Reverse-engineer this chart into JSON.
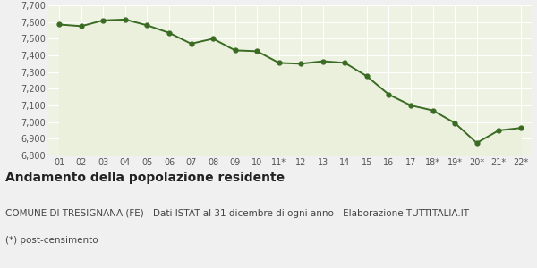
{
  "x_labels": [
    "01",
    "02",
    "03",
    "04",
    "05",
    "06",
    "07",
    "08",
    "09",
    "10",
    "11*",
    "12",
    "13",
    "14",
    "15",
    "16",
    "17",
    "18*",
    "19*",
    "20*",
    "21*",
    "22*"
  ],
  "y_values": [
    7585,
    7575,
    7610,
    7615,
    7580,
    7535,
    7470,
    7500,
    7430,
    7425,
    7355,
    7350,
    7365,
    7355,
    7275,
    7165,
    7100,
    7070,
    6995,
    6875,
    6950,
    6965
  ],
  "line_color": "#3a6b23",
  "fill_color": "#eaf0dc",
  "marker_color": "#3a6b23",
  "bg_color": "#f0f0f0",
  "plot_bg_color": "#eef2e2",
  "grid_color": "#ffffff",
  "ylim": [
    6800,
    7700
  ],
  "yticks": [
    6800,
    6900,
    7000,
    7100,
    7200,
    7300,
    7400,
    7500,
    7600,
    7700
  ],
  "title": "Andamento della popolazione residente",
  "subtitle": "COMUNE DI TRESIGNANA (FE) - Dati ISTAT al 31 dicembre di ogni anno - Elaborazione TUTTITALIA.IT",
  "footnote": "(*) post-censimento",
  "title_fontsize": 10,
  "subtitle_fontsize": 7.5,
  "footnote_fontsize": 7.5,
  "tick_fontsize": 7,
  "marker_size": 3.5,
  "line_width": 1.4
}
